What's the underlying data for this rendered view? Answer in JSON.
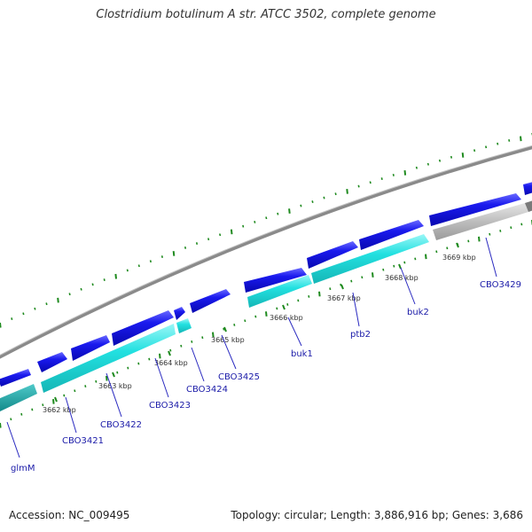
{
  "title": "Clostridium botulinum A str. ATCC 3502, complete genome",
  "footer": {
    "accession": "Accession: NC_009495",
    "stats": "Topology: circular; Length: 3,886,916 bp; Genes: 3,686"
  },
  "colors": {
    "forward_cds": "#1111dd",
    "reverse_cds": "#22dddd",
    "other_feature": "#b8b8b8",
    "backbone": "#888888",
    "gc_ticks": "#1e8a1e",
    "gene_label": "#1a1aa8"
  },
  "kbp_labels": [
    "3662 kbp",
    "3663 kbp",
    "3664 kbp",
    "3665 kbp",
    "3666 kbp",
    "3667 kbp",
    "3668 kbp",
    "3669 kbp"
  ],
  "gene_labels": [
    "glmM",
    "CBO3421",
    "CBO3422",
    "CBO3423",
    "CBO3424",
    "CBO3425",
    "buk1",
    "ptb2",
    "buk2",
    "CBO3429"
  ]
}
